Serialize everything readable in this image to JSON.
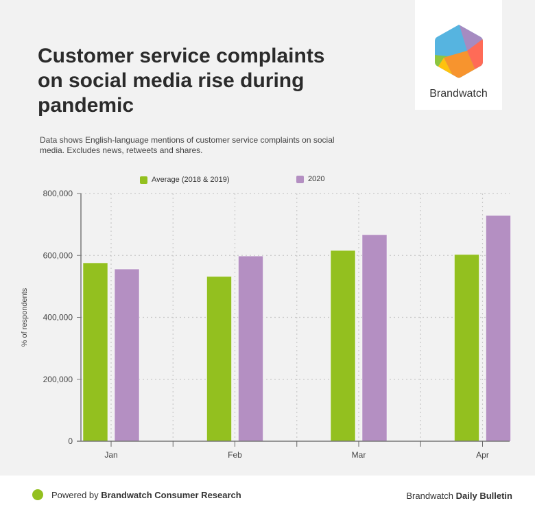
{
  "header": {
    "title": "Customer service complaints on social media rise during pandemic",
    "subtitle": "Data shows English-language mentions of customer service complaints on social media. Excludes news, retweets and shares."
  },
  "logo": {
    "text": "Brandwatch",
    "colors": [
      "#56b4e0",
      "#a68bc1",
      "#ff6b57",
      "#f7942e",
      "#ffc20e",
      "#8dc63f"
    ]
  },
  "footer": {
    "powered_prefix": "Powered by ",
    "powered_brand": "Brandwatch Consumer Research",
    "right_prefix": "Brandwatch ",
    "right_bold": "Daily Bulletin"
  },
  "colors": {
    "average": "#93c01f",
    "y2020": "#b48fc2",
    "background": "#f2f2f2"
  },
  "chart_data": {
    "type": "bar",
    "title": "Customer service complaints on social media rise during pandemic",
    "xlabel": "",
    "ylabel": "% of respondents",
    "categories": [
      "Jan",
      "Feb",
      "Mar",
      "Apr"
    ],
    "series": [
      {
        "name": "Average (2018 & 2019)",
        "values": [
          576000,
          532000,
          616000,
          603000
        ]
      },
      {
        "name": "2020",
        "values": [
          556000,
          598000,
          667000,
          729000
        ]
      }
    ],
    "ylim": [
      0,
      800000
    ],
    "yticks": [
      0,
      200000,
      400000,
      600000,
      800000
    ],
    "ytick_labels": [
      "0",
      "200,000",
      "400,000",
      "600,000",
      "800,000"
    ],
    "grid": true,
    "legend_position": "top"
  }
}
